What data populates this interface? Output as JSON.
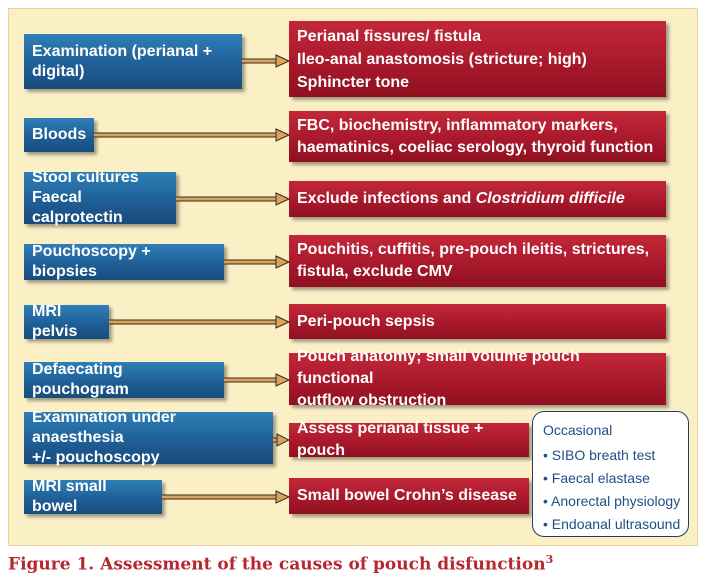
{
  "rows": [
    {
      "left": [
        "Examination (perianal +",
        "digital)"
      ],
      "right": [
        "Perianal fissures/ fistula",
        "Ileo-anal anastomosis (stricture; high)",
        "Sphincter tone"
      ]
    },
    {
      "left": [
        "Bloods"
      ],
      "right": [
        "FBC, biochemistry, inflammatory markers,",
        "haematinics, coeliac serology, thyroid function"
      ]
    },
    {
      "left": [
        "Stool cultures",
        "Faecal calprotectin"
      ],
      "right_prefix": "Exclude infections and ",
      "right_italic": "Clostridium difficile"
    },
    {
      "left": [
        "Pouchoscopy + biopsies"
      ],
      "right": [
        "Pouchitis, cuffitis, pre-pouch ileitis, strictures,",
        "fistula, exclude CMV"
      ]
    },
    {
      "left": [
        "MRI pelvis"
      ],
      "right": [
        "Peri-pouch sepsis"
      ]
    },
    {
      "left": [
        "Defaecating pouchogram"
      ],
      "right": [
        "Pouch anatomy; small volume pouch functional",
        "outflow obstruction"
      ]
    },
    {
      "left": [
        "Examination under anaesthesia",
        "+/- pouchoscopy"
      ],
      "right": [
        "Assess perianal tissue + pouch"
      ]
    },
    {
      "left": [
        "MRI small bowel"
      ],
      "right": [
        "Small bowel Crohn’s disease"
      ]
    }
  ],
  "occasional": {
    "title": "Occasional",
    "items": [
      "SIBO breath test",
      "Faecal elastase",
      "Anorectal physiology",
      "Endoanal ultrasound"
    ]
  },
  "caption": {
    "text": "Figure 1. Assessment of the causes of pouch disfunction",
    "sup": "3"
  },
  "colors": {
    "background": "#fbefc6",
    "left_box": "#1f5f97",
    "right_box": "#a9192b",
    "arrow": "#c58a3a",
    "caption": "#b7282e"
  }
}
